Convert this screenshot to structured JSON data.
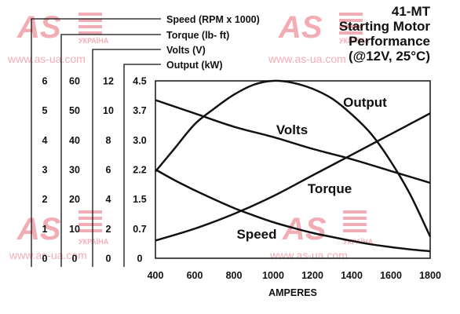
{
  "title_lines": [
    "41-MT",
    "Starting Motor",
    "Performance",
    "(@12V, 25°C)"
  ],
  "legend": [
    "Speed (RPM x 1000)",
    "Torque (lb- ft)",
    "Volts (V)",
    "Output (kW)"
  ],
  "watermark": {
    "logo_text": "AS",
    "sub_text": "УКРАЇНА",
    "url": "www.as-ua.com"
  },
  "chart_data": {
    "type": "line",
    "title": "41-MT Starting Motor Performance (@12V, 25°C)",
    "xlabel": "AMPERES",
    "xlim": [
      400,
      1800
    ],
    "x_ticks": [
      "400",
      "600",
      "800",
      "1000",
      "1200",
      "1400",
      "1600",
      "1800"
    ],
    "y_axes": [
      {
        "name": "Speed (RPM x 1000)",
        "ticks": [
          "0",
          "1",
          "2",
          "3",
          "4",
          "5",
          "6"
        ],
        "ylim": [
          0,
          6
        ]
      },
      {
        "name": "Torque (lb- ft)",
        "ticks": [
          "0",
          "10",
          "20",
          "30",
          "40",
          "50",
          "60"
        ],
        "ylim": [
          0,
          60
        ]
      },
      {
        "name": "Volts (V)",
        "ticks": [
          "0",
          "2",
          "4",
          "6",
          "8",
          "10",
          "12"
        ],
        "ylim": [
          0,
          12
        ]
      },
      {
        "name": "Output (kW)",
        "ticks": [
          "0",
          "0.7",
          "1.5",
          "2.2",
          "3.0",
          "3.7",
          "4.5"
        ],
        "ylim": [
          0,
          4.5
        ]
      }
    ],
    "grid": false,
    "series": [
      {
        "name": "Output",
        "axis": "Output (kW)",
        "x": [
          400,
          500,
          600,
          700,
          800,
          900,
          1000,
          1100,
          1200,
          1300,
          1400,
          1500,
          1600,
          1700,
          1800
        ],
        "y": [
          2.2,
          2.8,
          3.4,
          3.8,
          4.15,
          4.4,
          4.5,
          4.45,
          4.3,
          4.05,
          3.65,
          3.15,
          2.45,
          1.6,
          0.55
        ]
      },
      {
        "name": "Volts",
        "axis": "Volts (V)",
        "x": [
          400,
          600,
          800,
          1000,
          1200,
          1400,
          1600,
          1800
        ],
        "y": [
          10.7,
          9.8,
          8.9,
          8.2,
          7.4,
          6.7,
          5.9,
          5.1
        ]
      },
      {
        "name": "Torque",
        "axis": "Torque (lb- ft)",
        "x": [
          400,
          600,
          800,
          1000,
          1200,
          1400,
          1600,
          1800
        ],
        "y": [
          6,
          10,
          15,
          21,
          28,
          35,
          42,
          49
        ]
      },
      {
        "name": "Speed",
        "axis": "Speed (RPM x 1000)",
        "x": [
          400,
          500,
          600,
          700,
          800,
          900,
          1000,
          1100,
          1200,
          1300,
          1400,
          1500,
          1600,
          1700,
          1800
        ],
        "y": [
          3.0,
          2.63,
          2.3,
          1.99,
          1.7,
          1.45,
          1.22,
          1.03,
          0.86,
          0.72,
          0.59,
          0.47,
          0.38,
          0.3,
          0.24
        ]
      }
    ],
    "series_label_positions": [
      "upper-right",
      "center",
      "lower-right",
      "lower-center"
    ]
  }
}
